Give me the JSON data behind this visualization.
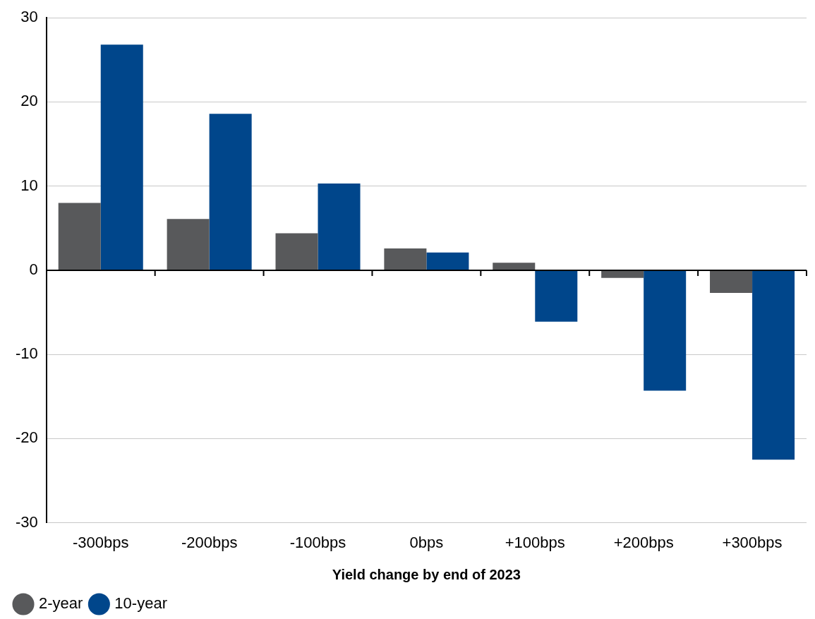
{
  "chart_data": {
    "type": "bar",
    "xlabel": "Yield change by end of 2023",
    "categories": [
      "-300bps",
      "-200bps",
      "-100bps",
      "0bps",
      "+100bps",
      "+200bps",
      "+300bps"
    ],
    "series": [
      {
        "name": "2-year",
        "color": "#58595b",
        "values": [
          8.0,
          6.1,
          4.4,
          2.6,
          0.9,
          -0.9,
          -2.7
        ]
      },
      {
        "name": "10-year",
        "color": "#00468b",
        "values": [
          26.8,
          18.6,
          10.3,
          2.1,
          -6.1,
          -14.3,
          -22.5
        ]
      }
    ],
    "ylim": [
      -30,
      30
    ],
    "yticks": [
      -30,
      -20,
      -10,
      0,
      10,
      20,
      30
    ],
    "grid": "y",
    "legend": "bottom left"
  }
}
